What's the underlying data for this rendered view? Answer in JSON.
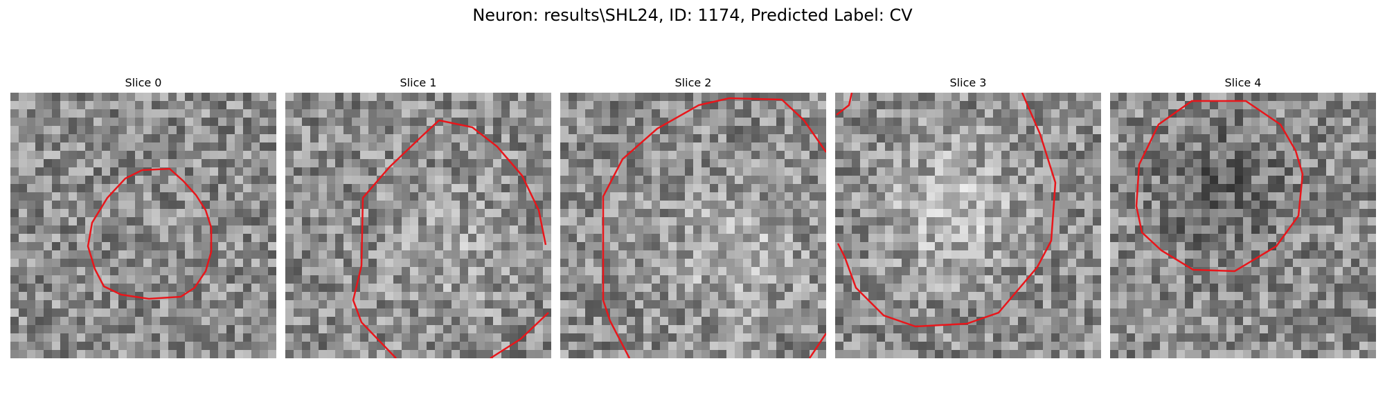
{
  "figure": {
    "title": "Neuron: results\\SHL24, ID: 1174, Predicted Label: CV"
  },
  "panels": [
    {
      "title": "Slice 0"
    },
    {
      "title": "Slice 1"
    },
    {
      "title": "Slice 2"
    },
    {
      "title": "Slice 3"
    },
    {
      "title": "Slice 4"
    }
  ],
  "colors": {
    "contour": "#e8161b",
    "background": "#ffffff"
  }
}
